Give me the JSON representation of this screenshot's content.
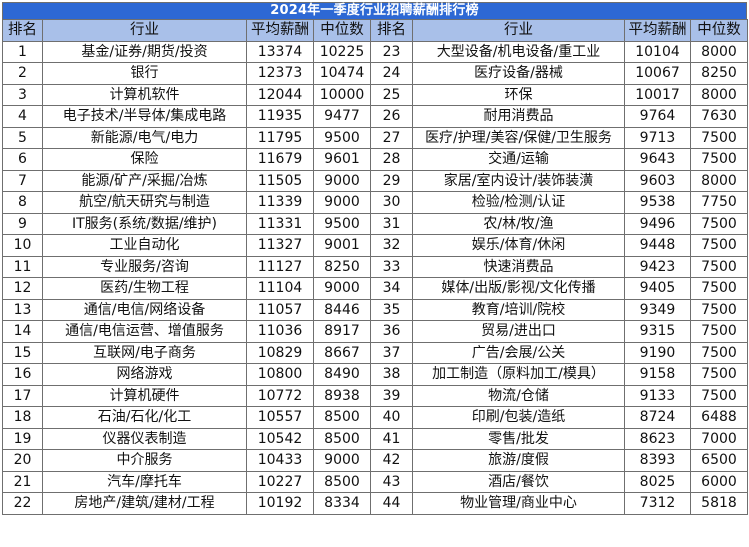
{
  "title": "2024年一季度行业招聘薪酬排行榜",
  "headers": [
    "排名",
    "行业",
    "平均薪酬",
    "中位数",
    "排名",
    "行业",
    "平均薪酬",
    "中位数"
  ],
  "rows": [
    [
      "1",
      "基金/证券/期货/投资",
      "13374",
      "10225",
      "23",
      "大型设备/机电设备/重工业",
      "10104",
      "8000"
    ],
    [
      "2",
      "银行",
      "12373",
      "10474",
      "24",
      "医疗设备/器械",
      "10067",
      "8250"
    ],
    [
      "3",
      "计算机软件",
      "12044",
      "10000",
      "25",
      "环保",
      "10017",
      "8000"
    ],
    [
      "4",
      "电子技术/半导体/集成电路",
      "11935",
      "9477",
      "26",
      "耐用消费品",
      "9764",
      "7630"
    ],
    [
      "5",
      "新能源/电气/电力",
      "11795",
      "9500",
      "27",
      "医疗/护理/美容/保健/卫生服务",
      "9713",
      "7500"
    ],
    [
      "6",
      "保险",
      "11679",
      "9601",
      "28",
      "交通/运输",
      "9643",
      "7500"
    ],
    [
      "7",
      "能源/矿产/采掘/冶炼",
      "11505",
      "9000",
      "29",
      "家居/室内设计/装饰装潢",
      "9603",
      "8000"
    ],
    [
      "8",
      "航空/航天研究与制造",
      "11339",
      "9000",
      "30",
      "检验/检测/认证",
      "9538",
      "7750"
    ],
    [
      "9",
      "IT服务(系统/数据/维护)",
      "11331",
      "9500",
      "31",
      "农/林/牧/渔",
      "9496",
      "7500"
    ],
    [
      "10",
      "工业自动化",
      "11327",
      "9001",
      "32",
      "娱乐/体育/休闲",
      "9448",
      "7500"
    ],
    [
      "11",
      "专业服务/咨询",
      "11127",
      "8250",
      "33",
      "快速消费品",
      "9423",
      "7500"
    ],
    [
      "12",
      "医药/生物工程",
      "11104",
      "9000",
      "34",
      "媒体/出版/影视/文化传播",
      "9405",
      "7500"
    ],
    [
      "13",
      "通信/电信/网络设备",
      "11057",
      "8446",
      "35",
      "教育/培训/院校",
      "9349",
      "7500"
    ],
    [
      "14",
      "通信/电信运营、增值服务",
      "11036",
      "8917",
      "36",
      "贸易/进出口",
      "9315",
      "7500"
    ],
    [
      "15",
      "互联网/电子商务",
      "10829",
      "8667",
      "37",
      "广告/会展/公关",
      "9190",
      "7500"
    ],
    [
      "16",
      "网络游戏",
      "10800",
      "8490",
      "38",
      "加工制造（原料加工/模具）",
      "9158",
      "7500"
    ],
    [
      "17",
      "计算机硬件",
      "10772",
      "8938",
      "39",
      "物流/仓储",
      "9133",
      "7500"
    ],
    [
      "18",
      "石油/石化/化工",
      "10557",
      "8500",
      "40",
      "印刷/包装/造纸",
      "8724",
      "6488"
    ],
    [
      "19",
      "仪器仪表制造",
      "10542",
      "8500",
      "41",
      "零售/批发",
      "8623",
      "7000"
    ],
    [
      "20",
      "中介服务",
      "10433",
      "9000",
      "42",
      "旅游/度假",
      "8393",
      "6500"
    ],
    [
      "21",
      "汽车/摩托车",
      "10227",
      "8500",
      "43",
      "酒店/餐饮",
      "8025",
      "6000"
    ],
    [
      "22",
      "房地产/建筑/建材/工程",
      "10192",
      "8334",
      "44",
      "物业管理/商业中心",
      "7312",
      "5818"
    ]
  ],
  "colors": {
    "title_bg": "#2d68d4",
    "header_bg": "#a9c0e9",
    "border": "#6f6f6f"
  }
}
